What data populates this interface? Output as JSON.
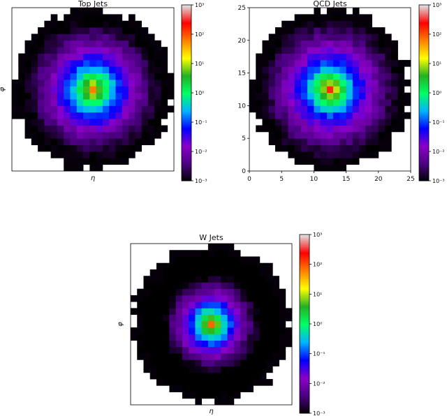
{
  "figure": {
    "colorscale": [
      "#000000",
      "#4b0082",
      "#8a00c8",
      "#0000ff",
      "#00b4ff",
      "#00ff66",
      "#22b222",
      "#ffff00",
      "#ff8000",
      "#ff0000",
      "#e0e0e0"
    ]
  },
  "chart_data": [
    {
      "type": "heatmap",
      "title": "Top Jets",
      "xlabel": "η",
      "ylabel": "φ",
      "grid_size": 25,
      "scale": "log",
      "ticks_shown": false,
      "grid": false,
      "colorbar": {
        "ticks": [
          "10³",
          "10²",
          "10¹",
          "10⁰",
          "10⁻¹",
          "10⁻²",
          "10⁻³"
        ],
        "range_log10": [
          -3,
          3
        ]
      },
      "center": [
        12,
        12
      ],
      "peak_log10": 1.7,
      "core_width": 4.0,
      "tail_slope": 0.33,
      "radius": 12.3
    },
    {
      "type": "heatmap",
      "title": "QCD Jets",
      "xlabel": "",
      "ylabel": "",
      "grid_size": 25,
      "scale": "log",
      "ticks_shown": true,
      "xticks": [
        "0",
        "5",
        "10",
        "15",
        "20",
        "25"
      ],
      "yticks": [
        "0",
        "5",
        "10",
        "15",
        "20",
        "25"
      ],
      "xlim": [
        0,
        25
      ],
      "ylim": [
        0,
        25
      ],
      "grid": false,
      "colorbar": {
        "ticks": [
          "10³",
          "10²",
          "10¹",
          "10⁰",
          "10⁻¹",
          "10⁻²",
          "10⁻³"
        ],
        "range_log10": [
          -3,
          3
        ]
      },
      "center": [
        12,
        12
      ],
      "peak_log10": 2.1,
      "core_width": 3.0,
      "tail_slope": 0.36,
      "radius": 12.3
    },
    {
      "type": "heatmap",
      "title": "W Jets",
      "xlabel": "η",
      "ylabel": "φ",
      "grid_size": 25,
      "scale": "log",
      "ticks_shown": false,
      "grid": false,
      "colorbar": {
        "ticks": [
          "10³",
          "10²",
          "10¹",
          "10⁰",
          "10⁻¹",
          "10⁻²",
          "10⁻³"
        ],
        "range_log10": [
          -3,
          3
        ]
      },
      "center": [
        12,
        12
      ],
      "peak_log10": 2.1,
      "core_width": 2.4,
      "tail_slope": 0.55,
      "radius": 12.3
    }
  ]
}
